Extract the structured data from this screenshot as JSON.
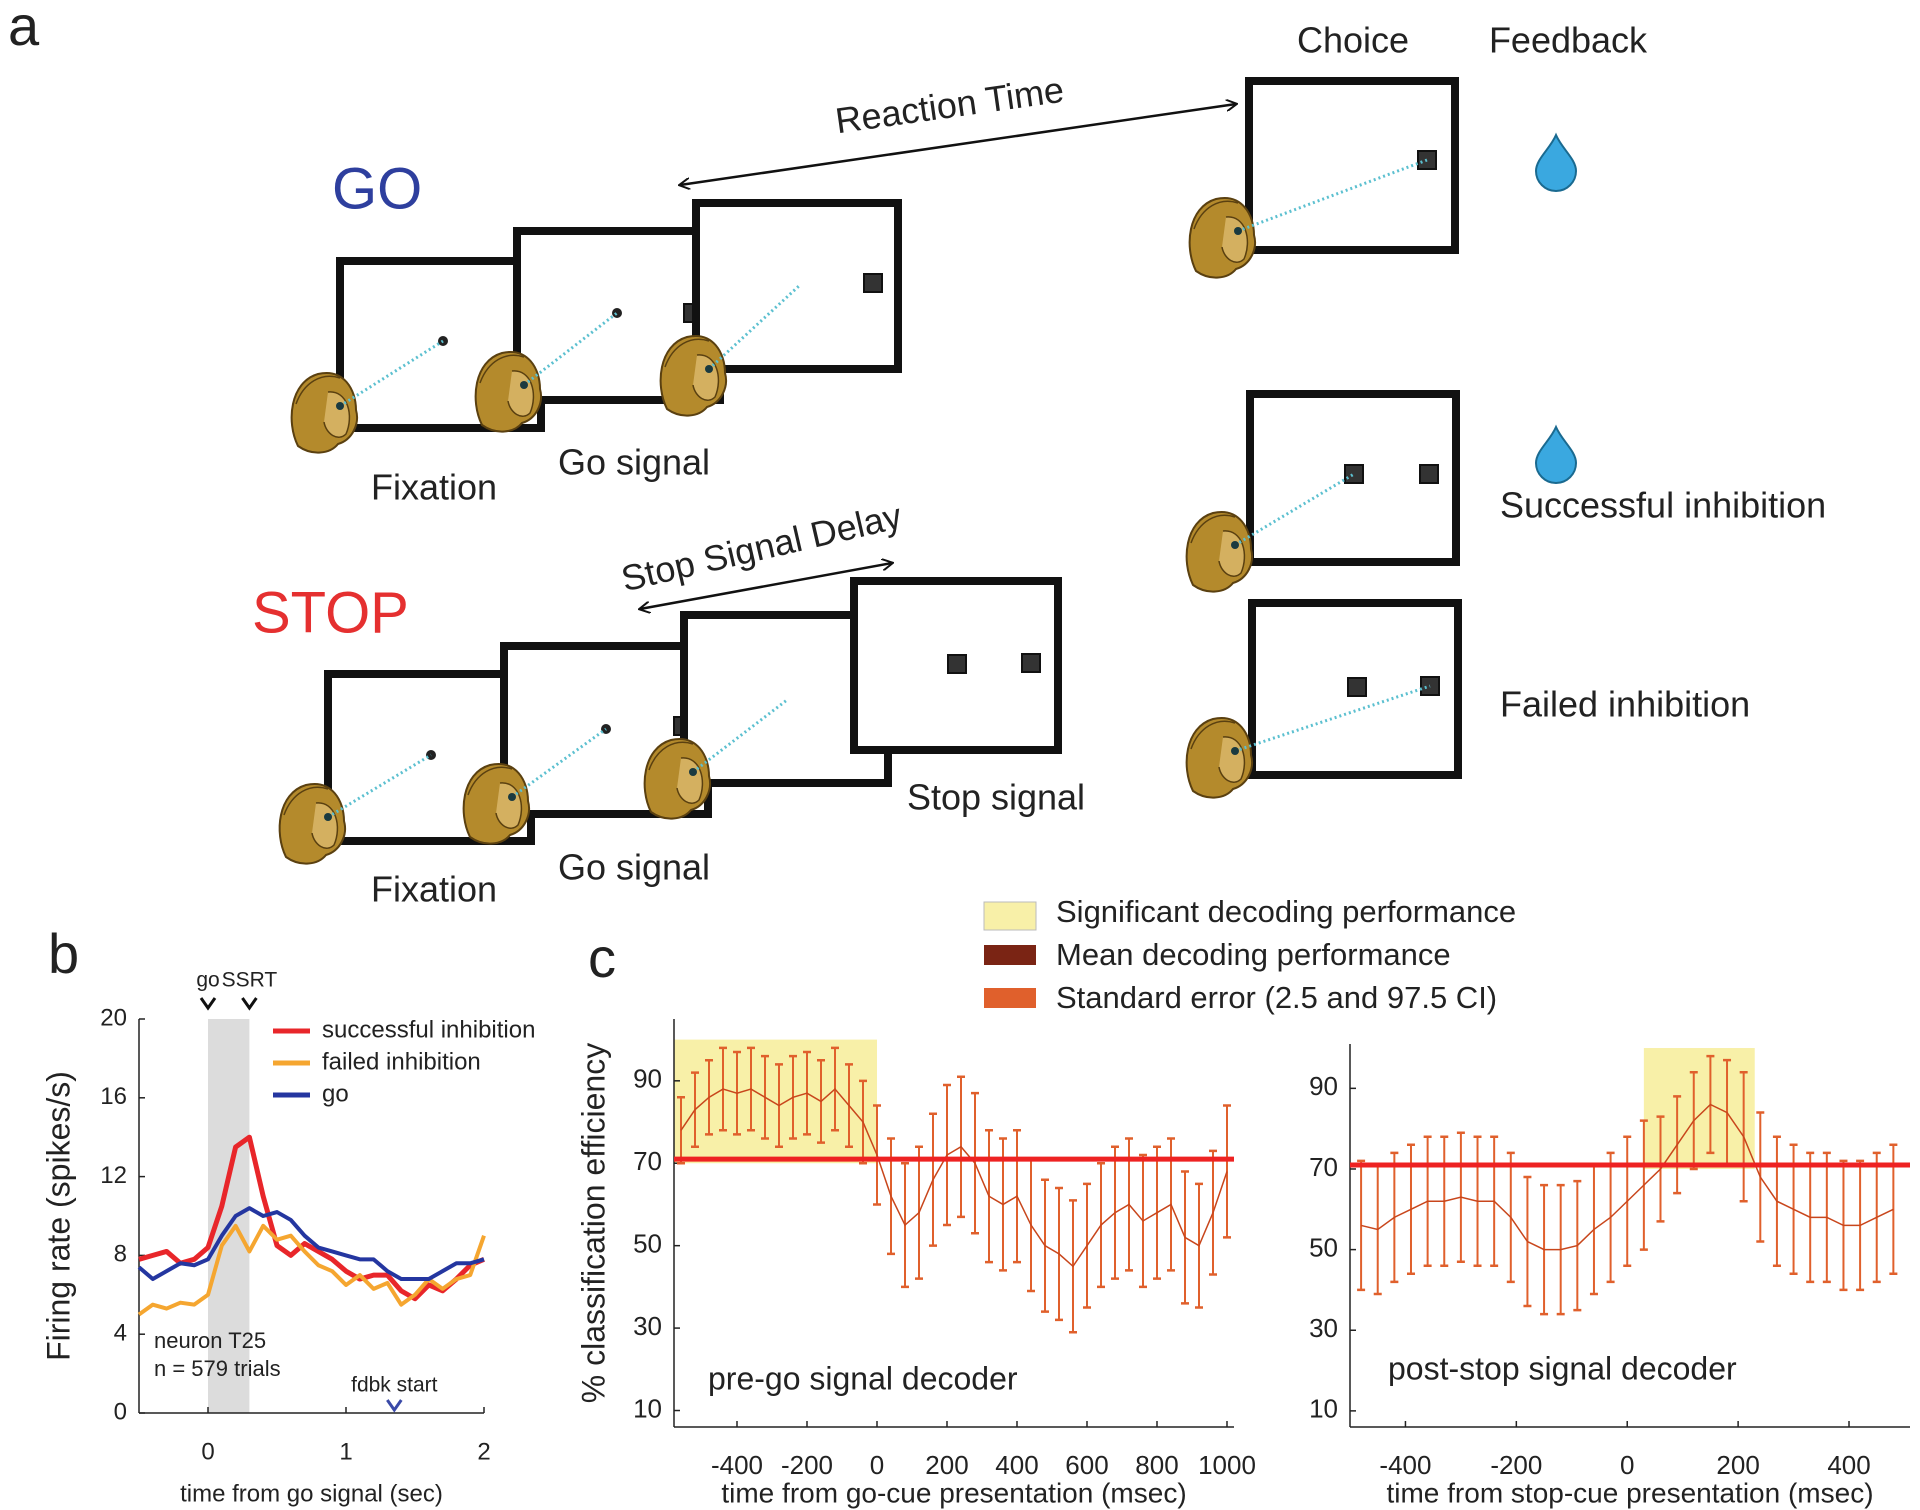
{
  "panel_a": {
    "label": "a",
    "go": "GO",
    "stop": "STOP",
    "choice": "Choice",
    "feedback": "Feedback",
    "reaction_time": "Reaction Time",
    "go_fixation": "Fixation",
    "go_go_signal": "Go signal",
    "stop_signal_delay": "Stop Signal Delay",
    "stop_fixation": "Fixation",
    "stop_go_signal": "Go signal",
    "stop_signal": "Stop signal",
    "successful_inhibition": "Successful inhibition",
    "failed_inhibition": "Failed inhibition"
  },
  "panel_c": {
    "label": "c",
    "legend": [
      {
        "name": "Significant decoding performance",
        "color": "#f8f0a8"
      },
      {
        "name": "Mean decoding performance",
        "color": "#7a2414"
      },
      {
        "name": "Standard error (2.5 and 97.5 CI)",
        "color": "#e0602c"
      }
    ]
  },
  "chart_data": [
    {
      "type": "line",
      "panel": "b",
      "xlabel": "time from go signal (sec)",
      "ylabel": "Firing rate (spikes/s)",
      "xlim": [
        -0.5,
        2
      ],
      "ylim": [
        0,
        20
      ],
      "xticks": [
        0,
        1,
        2
      ],
      "yticks": [
        0,
        4,
        8,
        12,
        16,
        20
      ],
      "shaded_span": [
        0,
        0.3
      ],
      "shade_color": "#dcdcdc",
      "legend": "upper right",
      "events": [
        {
          "label": "go",
          "x": 0,
          "position": "top",
          "color": "#111111"
        },
        {
          "label": "SSRT",
          "x": 0.3,
          "position": "top",
          "color": "#111111"
        },
        {
          "label": "fdbk start",
          "x": 1.35,
          "position": "bottom",
          "color": "#3a4aa8"
        }
      ],
      "annotations": [
        "neuron T25",
        "n = 579 trials"
      ],
      "x": [
        -0.5,
        -0.4,
        -0.3,
        -0.2,
        -0.1,
        0,
        0.1,
        0.2,
        0.3,
        0.4,
        0.5,
        0.6,
        0.7,
        0.8,
        0.9,
        1,
        1.1,
        1.2,
        1.3,
        1.4,
        1.5,
        1.6,
        1.7,
        1.8,
        1.9,
        2
      ],
      "series": [
        {
          "name": "successful inhibition",
          "color": "#e8262a",
          "values": [
            7.8,
            8,
            8.2,
            7.6,
            7.8,
            8.4,
            10.5,
            13.5,
            14,
            11,
            8.5,
            8,
            8.6,
            8.2,
            7.8,
            7.2,
            6.8,
            7,
            7,
            6.2,
            5.8,
            6.5,
            6.2,
            6.8,
            7.5,
            7.8
          ]
        },
        {
          "name": "failed inhibition",
          "color": "#f5a630",
          "values": [
            5,
            5.5,
            5.3,
            5.6,
            5.5,
            6,
            8.5,
            9.5,
            8.2,
            9.5,
            8.8,
            9,
            8.2,
            7.5,
            7.2,
            6.5,
            7,
            6.3,
            6.6,
            5.5,
            6,
            6.8,
            6.3,
            6.8,
            7,
            9
          ]
        },
        {
          "name": "go",
          "color": "#2436a0",
          "values": [
            7.4,
            6.8,
            7.2,
            7.6,
            7.5,
            7.8,
            9,
            10,
            10.4,
            10,
            10.2,
            9.8,
            9,
            8.4,
            8.2,
            8,
            7.8,
            7.8,
            7.2,
            6.8,
            6.8,
            6.8,
            7.2,
            7.6,
            7.6,
            7.8
          ]
        }
      ]
    },
    {
      "type": "errorbar",
      "xlabel": "time from go-cue presentation (msec)",
      "ylabel": "% classification efficiency",
      "annotation": "pre-go signal decoder",
      "xlim": [
        -580,
        1020
      ],
      "ylim": [
        6,
        105
      ],
      "xticks": [
        -400,
        -200,
        0,
        200,
        400,
        600,
        800,
        1000
      ],
      "yticks": [
        10,
        30,
        50,
        70,
        90
      ],
      "threshold": 71,
      "threshold_color": "#ee2222",
      "mean_color": "#c8461c",
      "error_color": "#e0602c",
      "span_color": "#f8f0a8",
      "significant_spans": [
        {
          "x": [
            -580,
            0
          ],
          "y": [
            70,
            100
          ]
        }
      ],
      "x": [
        -560,
        -520,
        -480,
        -440,
        -400,
        -360,
        -320,
        -280,
        -240,
        -200,
        -160,
        -120,
        -80,
        -40,
        0,
        40,
        80,
        120,
        160,
        200,
        240,
        280,
        320,
        360,
        400,
        440,
        480,
        520,
        560,
        600,
        640,
        680,
        720,
        760,
        800,
        840,
        880,
        920,
        960,
        1000
      ],
      "values": [
        78,
        83,
        86,
        88,
        87,
        88,
        86,
        84,
        86,
        87,
        85,
        88,
        84,
        80,
        72,
        62,
        55,
        58,
        66,
        72,
        74,
        70,
        62,
        60,
        62,
        55,
        50,
        48,
        45,
        50,
        55,
        58,
        60,
        56,
        58,
        60,
        52,
        50,
        58,
        68
      ],
      "errors": [
        8,
        9,
        9,
        10,
        10,
        10,
        10,
        10,
        10,
        10,
        10,
        10,
        10,
        10,
        12,
        14,
        15,
        16,
        16,
        17,
        17,
        17,
        16,
        16,
        16,
        16,
        16,
        16,
        16,
        15,
        15,
        16,
        16,
        16,
        16,
        16,
        16,
        15,
        15,
        16
      ]
    },
    {
      "type": "errorbar",
      "xlabel": "time from stop-cue presentation (msec)",
      "annotation": "post-stop signal decoder",
      "xlim": [
        -500,
        510
      ],
      "ylim": [
        6,
        101
      ],
      "xticks": [
        -400,
        -200,
        0,
        200,
        400
      ],
      "yticks": [
        10,
        30,
        50,
        70,
        90
      ],
      "threshold": 71,
      "threshold_color": "#ee2222",
      "mean_color": "#c8461c",
      "error_color": "#e0602c",
      "span_color": "#f8f0a8",
      "significant_spans": [
        {
          "x": [
            30,
            230
          ],
          "y": [
            70,
            100
          ]
        }
      ],
      "x": [
        -480,
        -450,
        -420,
        -390,
        -360,
        -330,
        -300,
        -270,
        -240,
        -210,
        -180,
        -150,
        -120,
        -90,
        -60,
        -30,
        0,
        30,
        60,
        90,
        120,
        150,
        180,
        210,
        240,
        270,
        300,
        330,
        360,
        390,
        420,
        450,
        480
      ],
      "values": [
        56,
        55,
        58,
        60,
        62,
        62,
        63,
        62,
        62,
        58,
        52,
        50,
        50,
        51,
        55,
        58,
        62,
        66,
        70,
        76,
        82,
        86,
        84,
        78,
        68,
        62,
        60,
        58,
        58,
        56,
        56,
        58,
        60
      ],
      "errors": [
        16,
        16,
        16,
        16,
        16,
        16,
        16,
        16,
        16,
        16,
        16,
        16,
        16,
        16,
        16,
        16,
        16,
        16,
        13,
        12,
        12,
        12,
        13,
        16,
        16,
        16,
        16,
        16,
        16,
        16,
        16,
        16,
        16
      ]
    }
  ]
}
